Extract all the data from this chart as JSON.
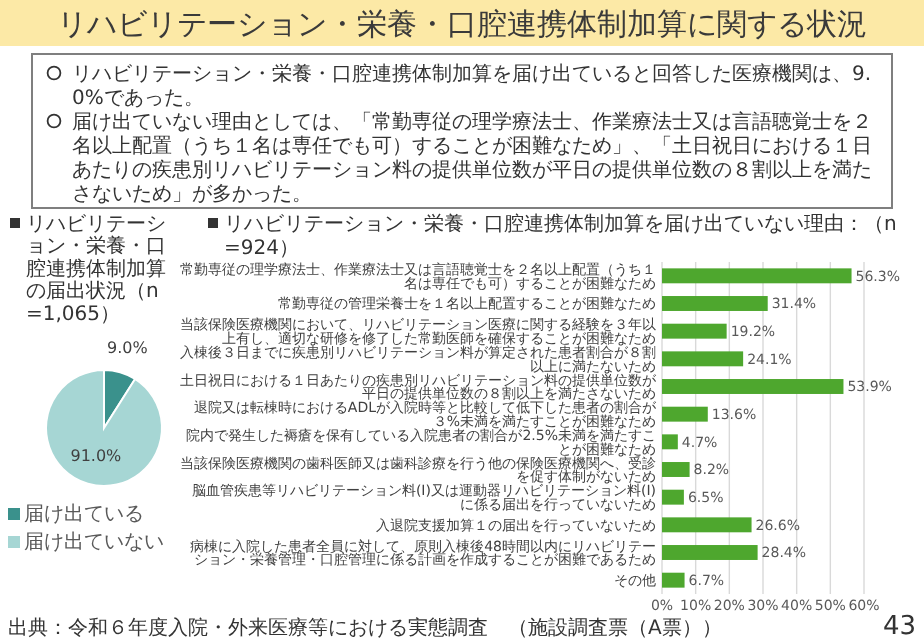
{
  "chart_data": [
    {
      "type": "pie",
      "title": "リハビリテーション・栄養・口腔連携体制加算の届出状況（n=1,065）",
      "categories": [
        "届け出ている",
        "届け出ていない"
      ],
      "values": [
        9.0,
        91.0
      ],
      "value_labels": [
        "9.0%",
        "91.0%"
      ],
      "colors": [
        "#3a918c",
        "#a6d6d4"
      ],
      "legend": "bottom",
      "annotations": [
        "リハビリテーション・栄養・口腔連携体制加算に関する状況",
        "リハビリテーション・栄養・口腔連携体制加算を届け出ていると回答した医療機関は、9.0%であった。",
        "届け出ていない理由としては、「常勤専従の理学療法士、作業療法士又は言語聴覚士を２名以上配置（うち１名は専任でも可）することが困難なため」、「土日祝日における１日あたりの疾患別リハビリテーション料の提供単位数が平日の提供単位数の８割以上を満たさないため」が多かった。",
        "出典：令和６年度入院・外来医療等における実態調査　（施設調査票（A票））"
      ]
    },
    {
      "type": "bar",
      "orientation": "horizontal",
      "title": "リハビリテーション・栄養・口腔連携体制加算を届け出ていない理由：（n=924）",
      "categories": [
        "常勤専従の理学療法士、作業療法士又は言語聴覚士を２名以上配置（うち１名は専任でも可）することが困難なため",
        "常勤専従の管理栄養士を１名以上配置することが困難なため",
        "当該保険医療機関において、リハビリテーション医療に関する経験を３年以上有し、適切な研修を修了した常勤医師を確保することが困難なため",
        "入棟後３日までに疾患別リハビリテーション料が算定された患者割合が８割以上に満たないため",
        "土日祝日における１日あたりの疾患別リハビリテーション料の提供単位数が平日の提供単位数の８割以上を満たさないため",
        "退院又は転棟時におけるADLが入院時等と比較して低下した患者の割合が３%未満を満たすことが困難なため",
        "院内で発生した褥瘡を保有している入院患者の割合が2.5%未満を満たすことが困難なため",
        "当該保険医療機関の歯科医師又は歯科診療を行う他の保険医療機関へ、受診を促す体制がないため",
        "脳血管疾患等リハビリテーション料(Ⅰ)又は運動器リハビリテーション料(Ⅰ)に係る届出を行っていないため",
        "入退院支援加算１の届出を行っていないため",
        "病棟に入院した患者全員に対して、原則入棟後48時間以内にリハビリテーション・栄養管理・口腔管理に係る計画を作成することが困難であるため",
        "その他"
      ],
      "values": [
        56.3,
        31.4,
        19.2,
        24.1,
        53.9,
        13.6,
        4.7,
        8.2,
        6.5,
        26.6,
        28.4,
        6.7
      ],
      "value_labels": [
        "56.3%",
        "31.4%",
        "19.2%",
        "24.1%",
        "53.9%",
        "13.6%",
        "4.7%",
        "8.2%",
        "6.5%",
        "26.6%",
        "28.4%",
        "6.7%"
      ],
      "color": "#4ea72e",
      "xlim": [
        0,
        60
      ],
      "xticks": [
        {
          "value": 0,
          "label": "0%"
        },
        {
          "value": 10,
          "label": "10%"
        },
        {
          "value": 20,
          "label": "20%"
        },
        {
          "value": 30,
          "label": "30%"
        },
        {
          "value": 40,
          "label": "40%"
        },
        {
          "value": 50,
          "label": "50%"
        },
        {
          "value": 60,
          "label": "60%"
        }
      ],
      "grid": "x",
      "annotations": [
        "43"
      ]
    }
  ]
}
